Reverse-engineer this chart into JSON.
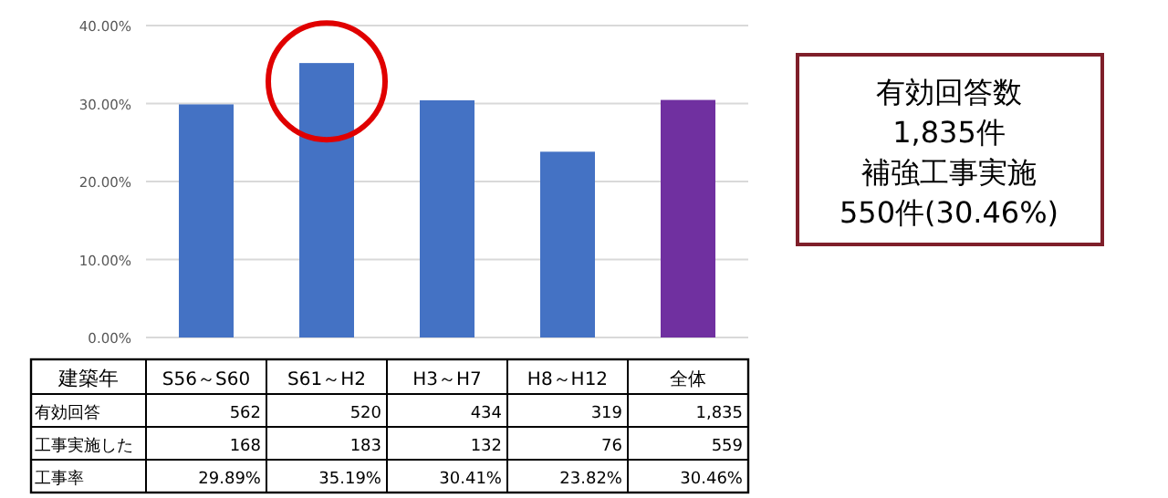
{
  "chart_data": {
    "type": "bar",
    "categories": [
      "S56～S60",
      "S61～H2",
      "H3～H7",
      "H8～H12",
      "全体"
    ],
    "values": [
      29.89,
      35.19,
      30.41,
      23.82,
      30.46
    ],
    "colors": [
      "#4472c4",
      "#4472c4",
      "#4472c4",
      "#4472c4",
      "#7030a0"
    ],
    "value_labels": [
      "29.89%",
      "35.19%",
      "30.41%",
      "23.82%",
      "30.46%"
    ],
    "ylim": [
      0,
      40
    ],
    "yticks": [
      {
        "value": 0,
        "label": "0.00%"
      },
      {
        "value": 10,
        "label": "10.00%"
      },
      {
        "value": 20,
        "label": "20.00%"
      },
      {
        "value": 30,
        "label": "30.00%"
      },
      {
        "value": 40,
        "label": "40.00%"
      }
    ],
    "grid": "y",
    "annotations": [
      "建築年",
      "有効回答",
      "562",
      "520",
      "434",
      "319",
      "1,835",
      "工事実施した",
      "168",
      "183",
      "132",
      "76",
      "559",
      "工事率",
      "有効回答数",
      "1,835件",
      "補強工事実施",
      "550件(30.46%)"
    ]
  }
}
